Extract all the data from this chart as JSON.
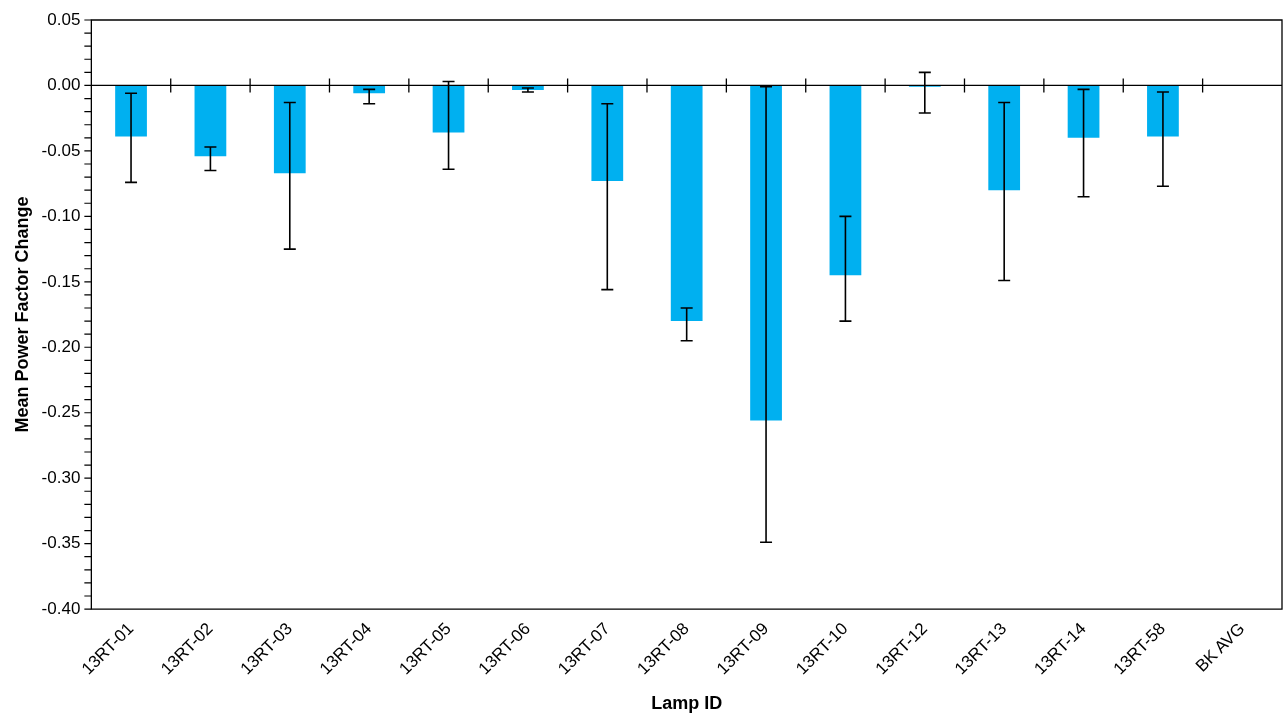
{
  "chart_data": {
    "type": "bar",
    "xlabel": "Lamp ID",
    "ylabel": "Mean Power Factor Change",
    "categories": [
      "13RT-01",
      "13RT-02",
      "13RT-03",
      "13RT-04",
      "13RT-05",
      "13RT-06",
      "13RT-07",
      "13RT-08",
      "13RT-09",
      "13RT-10",
      "13RT-12",
      "13RT-13",
      "13RT-14",
      "13RT-58",
      "BK AVG"
    ],
    "values": [
      -0.039,
      -0.054,
      -0.067,
      -0.006,
      -0.036,
      -0.0035,
      -0.073,
      -0.18,
      -0.256,
      -0.145,
      -0.001,
      -0.08,
      -0.04,
      -0.039,
      null
    ],
    "errors": [
      [
        -0.074,
        -0.006
      ],
      [
        -0.065,
        -0.047
      ],
      [
        -0.125,
        -0.013
      ],
      [
        -0.014,
        -0.003
      ],
      [
        -0.064,
        0.003
      ],
      [
        -0.005,
        -0.002
      ],
      [
        -0.156,
        -0.014
      ],
      [
        -0.195,
        -0.17
      ],
      [
        -0.349,
        -0.001
      ],
      [
        -0.18,
        -0.1
      ],
      [
        -0.021,
        0.01
      ],
      [
        -0.149,
        -0.013
      ],
      [
        -0.085,
        -0.003
      ],
      [
        -0.077,
        -0.005
      ],
      null
    ],
    "color": "#00b0f0",
    "ylim": [
      -0.4,
      0.05
    ],
    "yticks": [
      {
        "value": 0.05,
        "label": "0.05"
      },
      {
        "value": 0.04,
        "label": null
      },
      {
        "value": 0.03,
        "label": null
      },
      {
        "value": 0.02,
        "label": null
      },
      {
        "value": 0.01,
        "label": null
      },
      {
        "value": 0,
        "label": "0.00"
      },
      {
        "value": -0.01,
        "label": null
      },
      {
        "value": -0.02,
        "label": null
      },
      {
        "value": -0.03,
        "label": null
      },
      {
        "value": -0.04,
        "label": null
      },
      {
        "value": -0.05,
        "label": "-0.05"
      },
      {
        "value": -0.06,
        "label": null
      },
      {
        "value": -0.07,
        "label": null
      },
      {
        "value": -0.08,
        "label": null
      },
      {
        "value": -0.09,
        "label": null
      },
      {
        "value": -0.1,
        "label": "-0.10"
      },
      {
        "value": -0.11,
        "label": null
      },
      {
        "value": -0.12,
        "label": null
      },
      {
        "value": -0.13,
        "label": null
      },
      {
        "value": -0.14,
        "label": null
      },
      {
        "value": -0.15,
        "label": "-0.15"
      },
      {
        "value": -0.16,
        "label": null
      },
      {
        "value": -0.17,
        "label": null
      },
      {
        "value": -0.18,
        "label": null
      },
      {
        "value": -0.19,
        "label": null
      },
      {
        "value": -0.2,
        "label": "-0.20"
      },
      {
        "value": -0.21,
        "label": null
      },
      {
        "value": -0.22,
        "label": null
      },
      {
        "value": -0.23,
        "label": null
      },
      {
        "value": -0.24,
        "label": null
      },
      {
        "value": -0.25,
        "label": "-0.25"
      },
      {
        "value": -0.26,
        "label": null
      },
      {
        "value": -0.27,
        "label": null
      },
      {
        "value": -0.28,
        "label": null
      },
      {
        "value": -0.29,
        "label": null
      },
      {
        "value": -0.3,
        "label": "-0.30"
      },
      {
        "value": -0.31,
        "label": null
      },
      {
        "value": -0.32,
        "label": null
      },
      {
        "value": -0.33,
        "label": null
      },
      {
        "value": -0.34,
        "label": null
      },
      {
        "value": -0.35,
        "label": "-0.35"
      },
      {
        "value": -0.36,
        "label": null
      },
      {
        "value": -0.37,
        "label": null
      },
      {
        "value": -0.38,
        "label": null
      },
      {
        "value": -0.39,
        "label": null
      },
      {
        "value": -0.4,
        "label": "-0.40"
      }
    ],
    "ref_lines": [
      {
        "axis": "y",
        "value": 0,
        "color": "#000000"
      }
    ],
    "grid": false,
    "legend": false
  }
}
